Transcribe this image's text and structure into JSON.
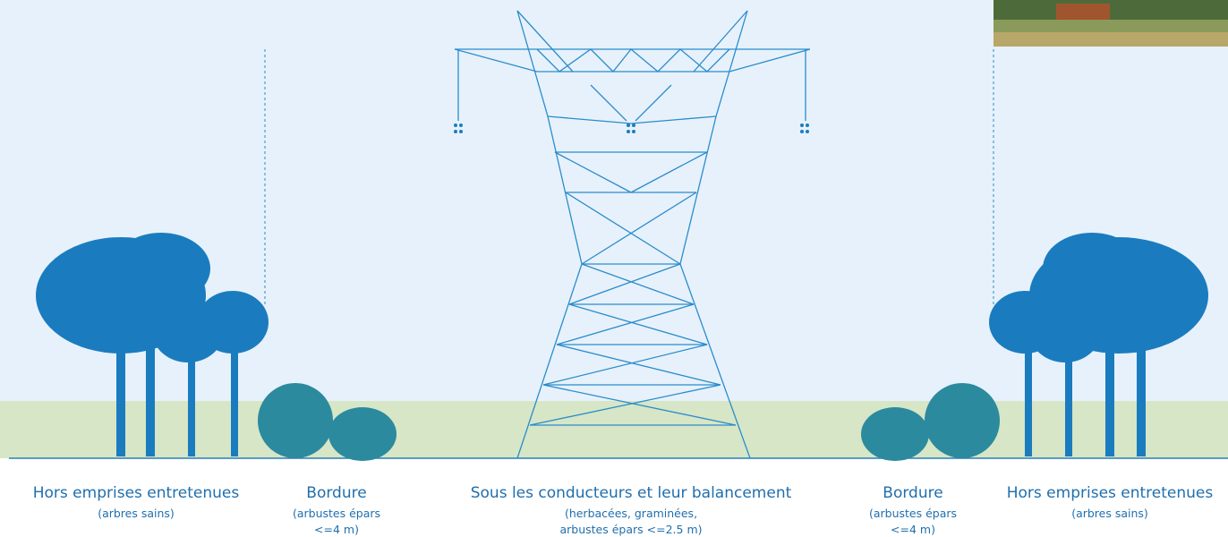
{
  "zones": [
    {
      "title": "Hors emprises entretenues",
      "notes": [
        "(arbres sains)"
      ]
    },
    {
      "title": "Bordure",
      "notes": [
        "(arbustes épars",
        "<=4 m)"
      ]
    },
    {
      "title": "Sous les conducteurs et leur balancement",
      "notes": [
        "(herbacées, graminées,",
        "arbustes épars <=2.5 m)"
      ]
    },
    {
      "title": "Bordure",
      "notes": [
        "(arbustes épars",
        "<=4 m)"
      ]
    },
    {
      "title": "Hors emprises entretenues",
      "notes": [
        "(arbres sains)"
      ]
    }
  ]
}
